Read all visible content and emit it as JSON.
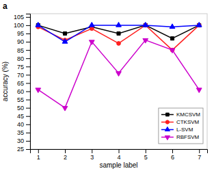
{
  "chart_data": {
    "type": "line",
    "title": "a",
    "xlabel": "sample label",
    "ylabel": "accuracy (%)",
    "x": [
      1,
      2,
      3,
      4,
      5,
      6,
      7
    ],
    "series": [
      {
        "name": "KMCSVM",
        "color": "#000000",
        "marker": "square",
        "values": [
          100,
          95,
          99,
          95,
          100,
          92,
          100
        ]
      },
      {
        "name": "CTKSVM",
        "color": "#ff2020",
        "marker": "circle",
        "values": [
          99,
          91,
          98,
          89,
          100,
          85,
          100
        ]
      },
      {
        "name": "L-SVM",
        "color": "#0000ff",
        "marker": "triangle-up",
        "values": [
          100,
          90,
          100,
          100,
          100,
          99,
          100
        ]
      },
      {
        "name": "RBFSVM",
        "color": "#cc00cc",
        "marker": "triangle-down",
        "values": [
          61,
          50,
          90,
          71,
          91,
          85,
          61
        ]
      }
    ],
    "xlim": [
      0.7,
      7.3
    ],
    "xticks": [
      1,
      2,
      3,
      4,
      5,
      6,
      7
    ],
    "ylim": [
      25,
      107
    ],
    "yticks": [
      25,
      30,
      35,
      40,
      45,
      50,
      55,
      60,
      65,
      70,
      75,
      80,
      85,
      90,
      95,
      100,
      105
    ],
    "legend": "lower right"
  }
}
